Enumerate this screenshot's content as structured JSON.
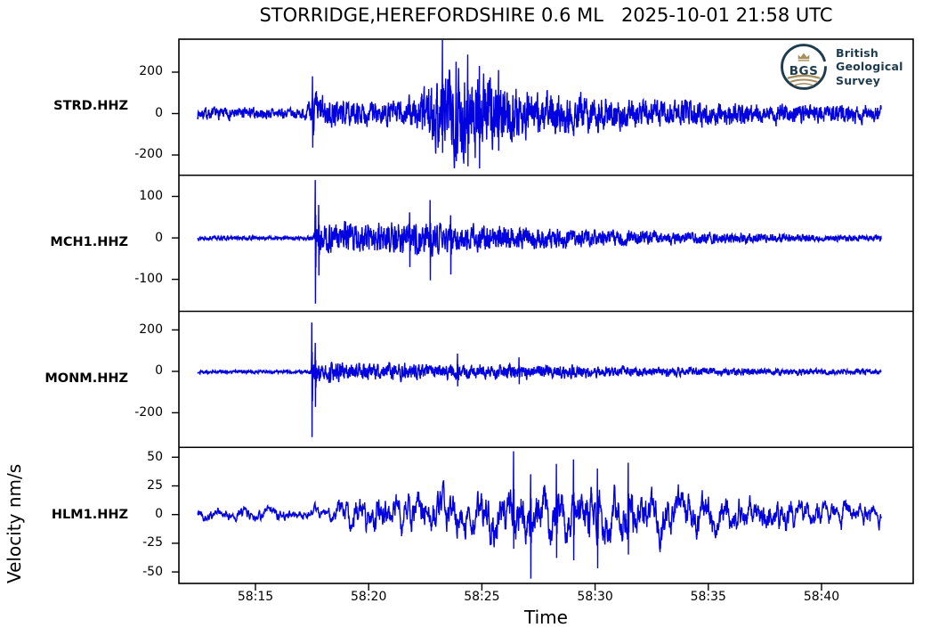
{
  "header": {
    "title": "STORRIDGE,HEREFORDSHIRE 0.6 ML   2025-10-01 21:58 UTC"
  },
  "logo": {
    "abbr": "BGS",
    "lines": [
      "British",
      "Geological",
      "Survey"
    ],
    "navy": "#1e3c4e",
    "gold": "#a78f5e"
  },
  "chart_data": {
    "type": "line",
    "title": "STORRIDGE,HEREFORDSHIRE 0.6 ML   2025-10-01 21:58 UTC",
    "xlabel": "Time",
    "ylabel": "Velocity nm/s",
    "x_ticks": [
      "58:15",
      "58:20",
      "58:25",
      "58:30",
      "58:35",
      "58:40"
    ],
    "x_tick_interval_seconds": 5,
    "trace_duration_seconds": 30,
    "grid": false,
    "legend": false,
    "line_color": "#0202e0",
    "panels": [
      {
        "station": "STRD.HHZ",
        "yticks": [
          200,
          0,
          -200
        ],
        "ylim": [
          -298,
          359
        ],
        "seed": 7,
        "noise_smoothness": 0.55,
        "envelope": [
          [
            0,
            32
          ],
          [
            0.16,
            32
          ],
          [
            0.168,
            120
          ],
          [
            0.185,
            95
          ],
          [
            0.22,
            62
          ],
          [
            0.27,
            68
          ],
          [
            0.3,
            75
          ],
          [
            0.325,
            110
          ],
          [
            0.345,
            190
          ],
          [
            0.365,
            265
          ],
          [
            0.4,
            255
          ],
          [
            0.43,
            200
          ],
          [
            0.47,
            150
          ],
          [
            0.52,
            115
          ],
          [
            0.58,
            95
          ],
          [
            0.65,
            80
          ],
          [
            0.72,
            68
          ],
          [
            0.8,
            60
          ],
          [
            0.9,
            52
          ],
          [
            1,
            45
          ]
        ],
        "spikes": [
          [
            0.168,
            180,
            -165
          ],
          [
            0.358,
            355,
            -190
          ],
          [
            0.378,
            250,
            -230
          ],
          [
            0.395,
            285,
            -255
          ],
          [
            0.412,
            230,
            -265
          ],
          [
            0.44,
            210,
            -180
          ]
        ]
      },
      {
        "station": "MCH1.HHZ",
        "yticks": [
          100,
          0,
          -100
        ],
        "ylim": [
          -177,
          151
        ],
        "seed": 13,
        "noise_smoothness": 0.5,
        "envelope": [
          [
            0,
            5
          ],
          [
            0.168,
            5
          ],
          [
            0.175,
            42
          ],
          [
            0.21,
            46
          ],
          [
            0.25,
            40
          ],
          [
            0.3,
            46
          ],
          [
            0.34,
            42
          ],
          [
            0.38,
            38
          ],
          [
            0.42,
            34
          ],
          [
            0.47,
            30
          ],
          [
            0.52,
            27
          ],
          [
            0.58,
            24
          ],
          [
            0.65,
            20
          ],
          [
            0.72,
            17
          ],
          [
            0.8,
            13
          ],
          [
            0.9,
            10
          ],
          [
            1,
            8
          ]
        ],
        "spikes": [
          [
            0.172,
            140,
            -158
          ],
          [
            0.177,
            80,
            -90
          ],
          [
            0.31,
            62,
            -70
          ],
          [
            0.34,
            92,
            -102
          ],
          [
            0.37,
            55,
            -88
          ]
        ]
      },
      {
        "station": "MONM.HHZ",
        "yticks": [
          200,
          0,
          -200
        ],
        "ylim": [
          -367,
          290
        ],
        "seed": 29,
        "noise_smoothness": 0.5,
        "envelope": [
          [
            0,
            8
          ],
          [
            0.162,
            8
          ],
          [
            0.17,
            65
          ],
          [
            0.2,
            60
          ],
          [
            0.24,
            50
          ],
          [
            0.3,
            45
          ],
          [
            0.36,
            42
          ],
          [
            0.42,
            40
          ],
          [
            0.47,
            42
          ],
          [
            0.53,
            36
          ],
          [
            0.6,
            30
          ],
          [
            0.68,
            26
          ],
          [
            0.76,
            22
          ],
          [
            0.85,
            18
          ],
          [
            1,
            15
          ]
        ],
        "spikes": [
          [
            0.167,
            238,
            -315
          ],
          [
            0.172,
            140,
            -170
          ],
          [
            0.38,
            88,
            -70
          ],
          [
            0.47,
            70,
            -60
          ]
        ]
      },
      {
        "station": "HLM1.HHZ",
        "yticks": [
          50,
          25,
          0,
          -25,
          -50
        ],
        "ylim": [
          -60,
          58.6
        ],
        "seed": 42,
        "noise_smoothness": 0.88,
        "envelope": [
          [
            0,
            6.5
          ],
          [
            0.19,
            7
          ],
          [
            0.215,
            17
          ],
          [
            0.26,
            19
          ],
          [
            0.31,
            21
          ],
          [
            0.36,
            22
          ],
          [
            0.41,
            24
          ],
          [
            0.45,
            27
          ],
          [
            0.5,
            29
          ],
          [
            0.55,
            30
          ],
          [
            0.6,
            28
          ],
          [
            0.66,
            25
          ],
          [
            0.72,
            22
          ],
          [
            0.79,
            19
          ],
          [
            0.86,
            16
          ],
          [
            0.93,
            13
          ],
          [
            1,
            11
          ]
        ],
        "spikes": [
          [
            0.462,
            55,
            -30
          ],
          [
            0.487,
            35,
            -56
          ],
          [
            0.525,
            44,
            -38
          ],
          [
            0.55,
            48,
            -40
          ],
          [
            0.585,
            40,
            -47
          ],
          [
            0.63,
            45,
            -35
          ]
        ]
      }
    ]
  }
}
